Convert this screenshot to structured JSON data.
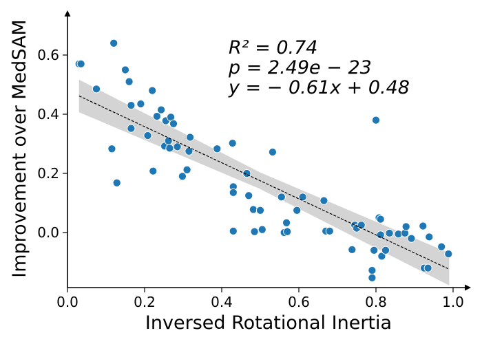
{
  "chart_data": {
    "type": "scatter",
    "xlabel": "Inversed Rotational Inertia",
    "ylabel": "Improvement over MedSAM",
    "xlim": [
      0.0,
      1.03
    ],
    "ylim": [
      -0.18,
      0.74
    ],
    "xticks": [
      0.0,
      0.2,
      0.4,
      0.6,
      0.8,
      1.0
    ],
    "xtick_labels": [
      "0.0",
      "0.2",
      "0.4",
      "0.6",
      "0.8",
      "1.0"
    ],
    "yticks": [
      0.0,
      0.2,
      0.4,
      0.6
    ],
    "ytick_labels": [
      "0.0",
      "0.2",
      "0.4",
      "0.6"
    ],
    "grid": false,
    "point_color": "#1f77b4",
    "band_color": "#d4d4d4",
    "fit_line": {
      "slope": -0.61,
      "intercept": 0.48,
      "x_range": [
        0.03,
        0.99
      ],
      "style": "dashed"
    },
    "annotations": [
      "R² = 0.74",
      "p = 2.49e − 23",
      "y = − 0.61x + 0.48"
    ],
    "points": [
      [
        0.03,
        0.57
      ],
      [
        0.035,
        0.57
      ],
      [
        0.075,
        0.485
      ],
      [
        0.12,
        0.64
      ],
      [
        0.15,
        0.55
      ],
      [
        0.16,
        0.51
      ],
      [
        0.165,
        0.43
      ],
      [
        0.19,
        0.435
      ],
      [
        0.22,
        0.48
      ],
      [
        0.115,
        0.283
      ],
      [
        0.165,
        0.352
      ],
      [
        0.128,
        0.168
      ],
      [
        0.208,
        0.328
      ],
      [
        0.222,
        0.208
      ],
      [
        0.232,
        0.393
      ],
      [
        0.243,
        0.415
      ],
      [
        0.252,
        0.292
      ],
      [
        0.255,
        0.378
      ],
      [
        0.262,
        0.31
      ],
      [
        0.265,
        0.285
      ],
      [
        0.268,
        0.39
      ],
      [
        0.275,
        0.368
      ],
      [
        0.285,
        0.29
      ],
      [
        0.298,
        0.19
      ],
      [
        0.31,
        0.212
      ],
      [
        0.315,
        0.275
      ],
      [
        0.318,
        0.322
      ],
      [
        0.388,
        0.283
      ],
      [
        0.428,
        0.302
      ],
      [
        0.43,
        0.155
      ],
      [
        0.43,
        0.135
      ],
      [
        0.43,
        0.005
      ],
      [
        0.465,
        0.2
      ],
      [
        0.47,
        0.125
      ],
      [
        0.482,
        0.078
      ],
      [
        0.485,
        0.003
      ],
      [
        0.5,
        0.075
      ],
      [
        0.505,
        0.01
      ],
      [
        0.532,
        0.272
      ],
      [
        0.555,
        0.12
      ],
      [
        0.562,
        0.0
      ],
      [
        0.568,
        0.033
      ],
      [
        0.57,
        0.003
      ],
      [
        0.595,
        0.075
      ],
      [
        0.61,
        0.12
      ],
      [
        0.665,
        0.108
      ],
      [
        0.67,
        0.005
      ],
      [
        0.68,
        0.005
      ],
      [
        0.738,
        -0.058
      ],
      [
        0.745,
        0.025
      ],
      [
        0.75,
        0.015
      ],
      [
        0.762,
        0.025
      ],
      [
        0.79,
        -0.128
      ],
      [
        0.79,
        -0.153
      ],
      [
        0.795,
        -0.06
      ],
      [
        0.8,
        0.38
      ],
      [
        0.808,
        0.05
      ],
      [
        0.812,
        0.045
      ],
      [
        0.812,
        -0.008
      ],
      [
        0.815,
        -0.08
      ],
      [
        0.825,
        -0.06
      ],
      [
        0.835,
        -0.002
      ],
      [
        0.858,
        -0.005
      ],
      [
        0.875,
        -0.002
      ],
      [
        0.878,
        0.02
      ],
      [
        0.892,
        -0.02
      ],
      [
        0.922,
        0.022
      ],
      [
        0.925,
        -0.12
      ],
      [
        0.935,
        -0.12
      ],
      [
        0.938,
        -0.015
      ],
      [
        0.97,
        -0.048
      ],
      [
        0.988,
        -0.072
      ]
    ]
  }
}
